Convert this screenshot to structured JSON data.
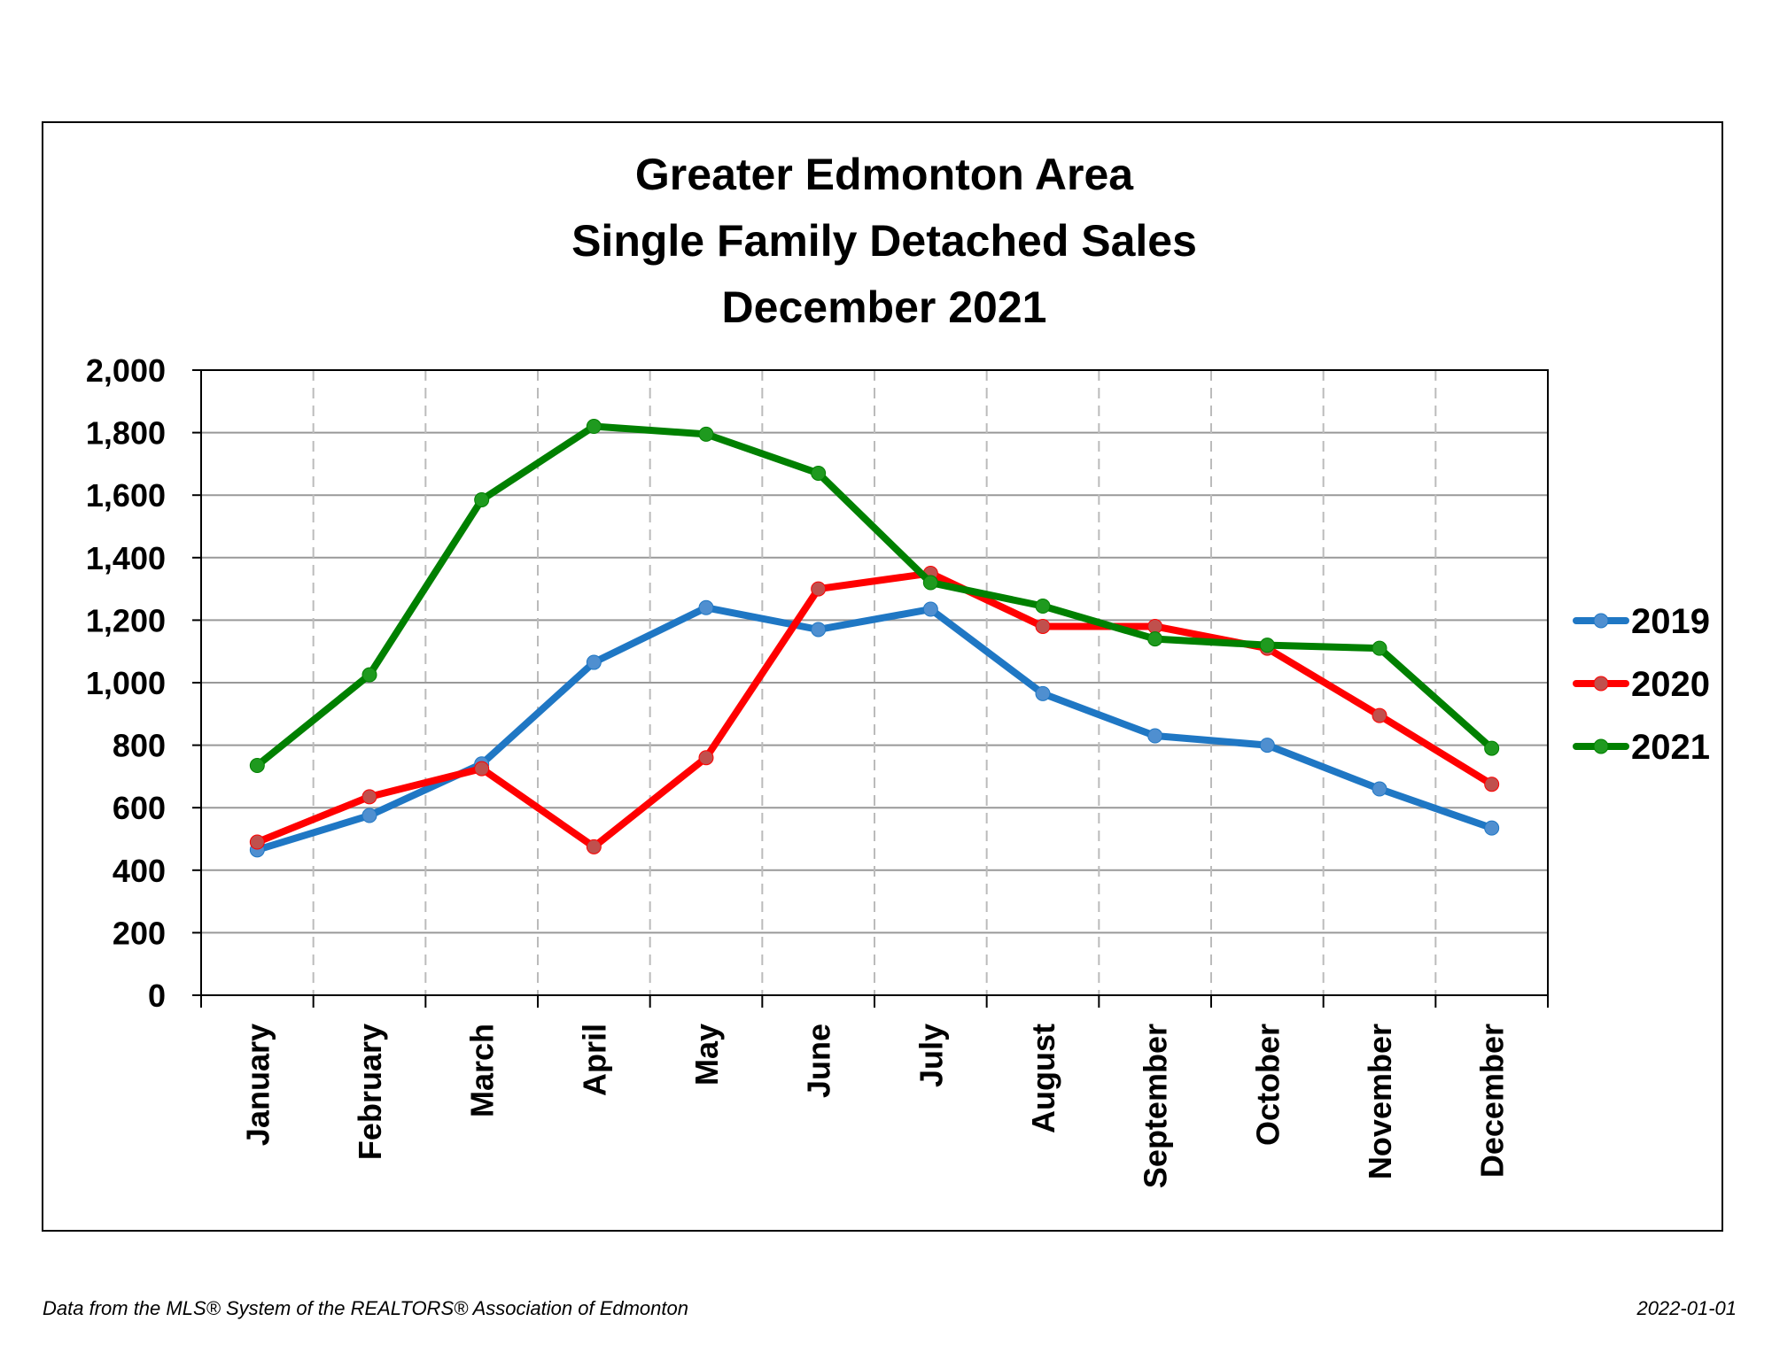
{
  "chart_data": {
    "type": "line",
    "title": [
      "Greater Edmonton Area",
      "Single Family Detached Sales",
      "December 2021"
    ],
    "xlabel": "",
    "ylabel": "",
    "categories": [
      "January",
      "February",
      "March",
      "April",
      "May",
      "June",
      "July",
      "August",
      "September",
      "October",
      "November",
      "December"
    ],
    "ylim": [
      0,
      2000
    ],
    "yticks": [
      0,
      200,
      400,
      600,
      800,
      1000,
      1200,
      1400,
      1600,
      1800,
      2000
    ],
    "ytick_labels": [
      "0",
      "200",
      "400",
      "600",
      "800",
      "1,000",
      "1,200",
      "1,400",
      "1,600",
      "1,800",
      "2,000"
    ],
    "grid": true,
    "legend_position": "right",
    "series": [
      {
        "name": "2019",
        "color": "#1f77c4",
        "marker_color": "#4f8fd0",
        "values": [
          465,
          575,
          740,
          1065,
          1240,
          1170,
          1235,
          965,
          830,
          800,
          660,
          535
        ]
      },
      {
        "name": "2020",
        "color": "#ff0000",
        "marker_color": "#c0504d",
        "values": [
          490,
          635,
          725,
          475,
          760,
          1300,
          1350,
          1180,
          1180,
          1110,
          895,
          675
        ]
      },
      {
        "name": "2021",
        "color": "#008000",
        "marker_color": "#1f9a1f",
        "values": [
          735,
          1025,
          1585,
          1820,
          1795,
          1670,
          1320,
          1245,
          1140,
          1120,
          1110,
          790
        ]
      }
    ]
  },
  "footer": {
    "source": "Data from the MLS® System of the REALTORS® Association of Edmonton",
    "date": "2022-01-01"
  }
}
